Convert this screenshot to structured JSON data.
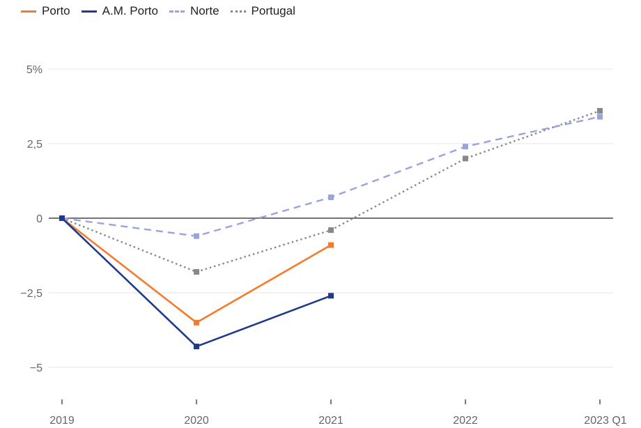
{
  "chart_data": {
    "type": "line",
    "x": [
      "2019",
      "2020",
      "2021",
      "2022",
      "2023 Q1"
    ],
    "series": [
      {
        "name": "Porto",
        "color": "#f47a2c",
        "dash": "solid",
        "values": [
          0,
          -3.5,
          -0.9,
          null,
          null
        ]
      },
      {
        "name": "A.M. Porto",
        "color": "#1f3a8a",
        "dash": "solid",
        "values": [
          0,
          -4.3,
          -2.6,
          null,
          null
        ]
      },
      {
        "name": "Norte",
        "color": "#98a3e0",
        "dash": "dashed",
        "values": [
          0,
          -0.6,
          0.7,
          2.4,
          3.4
        ]
      },
      {
        "name": "Portugal",
        "color": "#888888",
        "dash": "dotted",
        "values": [
          0,
          -1.8,
          -0.4,
          2.0,
          3.6
        ]
      }
    ],
    "yticks": [
      5,
      2.5,
      0,
      -2.5,
      -5
    ],
    "ytick_labels": [
      "5%",
      "2,5",
      "0",
      "−2,5",
      "−5"
    ],
    "ylim": [
      -5.8,
      5.4
    ],
    "grid": true,
    "legend_position": "top-left"
  }
}
